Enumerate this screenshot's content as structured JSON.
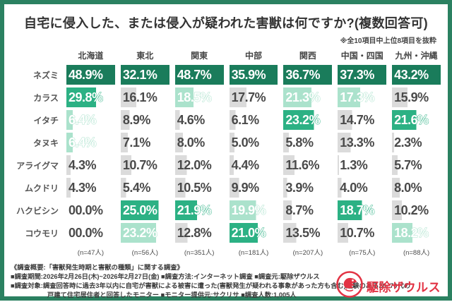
{
  "title": "自宅に侵入した、または侵入が疑われた害獣は何ですか?(複数回答可)",
  "note": "※全10項目中上位8項目を抜粋",
  "chart_data": {
    "type": "heatmap",
    "title": "自宅に侵入した、または侵入が疑われた害獣は何ですか?(複数回答可)",
    "subtitle": "※全10項目中上位8項目を抜粋",
    "unit": "%",
    "columns": [
      "北海道",
      "東北",
      "関東",
      "中部",
      "関西",
      "中国・四国",
      "九州・沖縄"
    ],
    "column_max": [
      48.9,
      32.1,
      48.7,
      35.9,
      36.7,
      37.3,
      43.2
    ],
    "sample_sizes": [
      "(n=47人)",
      "(n=56人)",
      "(n=351人)",
      "(n=181人)",
      "(n=207人)",
      "(n=75人)",
      "(n=88人)"
    ],
    "rank_legend": "per-column rank: 1=dark green, 2=medium green, 3=light green, 0=gray",
    "rows": [
      {
        "label": "ネズミ",
        "display": [
          "48.9%",
          "32.1%",
          "48.7%",
          "35.9%",
          "36.7%",
          "37.3%",
          "43.2%"
        ],
        "values": [
          48.9,
          32.1,
          48.7,
          35.9,
          36.7,
          37.3,
          43.2
        ],
        "ranks": [
          1,
          1,
          1,
          1,
          1,
          1,
          1
        ]
      },
      {
        "label": "カラス",
        "display": [
          "29.8%",
          "16.1%",
          "18.5%",
          "17.7%",
          "21.3%",
          "17.3%",
          "15.9%"
        ],
        "values": [
          29.8,
          16.1,
          18.5,
          17.7,
          21.3,
          17.3,
          15.9
        ],
        "ranks": [
          2,
          0,
          3,
          0,
          3,
          3,
          0
        ]
      },
      {
        "label": "イタチ",
        "display": [
          "6.4%",
          "8.9%",
          "4.6%",
          "6.1%",
          "23.2%",
          "14.7%",
          "21.6%"
        ],
        "values": [
          6.4,
          8.9,
          4.6,
          6.1,
          23.2,
          14.7,
          21.6
        ],
        "ranks": [
          3,
          0,
          0,
          0,
          2,
          0,
          2
        ]
      },
      {
        "label": "タヌキ",
        "display": [
          "6.4%",
          "7.1%",
          "8.0%",
          "5.0%",
          "5.8%",
          "13.3%",
          "2.3%"
        ],
        "values": [
          6.4,
          7.1,
          8.0,
          5.0,
          5.8,
          13.3,
          2.3
        ],
        "ranks": [
          3,
          0,
          0,
          0,
          0,
          0,
          0
        ]
      },
      {
        "label": "アライグマ",
        "display": [
          "4.3%",
          "10.7%",
          "12.0%",
          "4.4%",
          "11.6%",
          "1.3%",
          "5.7%"
        ],
        "values": [
          4.3,
          10.7,
          12.0,
          4.4,
          11.6,
          1.3,
          5.7
        ],
        "ranks": [
          0,
          0,
          0,
          0,
          0,
          0,
          0
        ]
      },
      {
        "label": "ムクドリ",
        "display": [
          "4.3%",
          "5.4%",
          "10.5%",
          "9.9%",
          "3.9%",
          "4.0%",
          "8.0%"
        ],
        "values": [
          4.3,
          5.4,
          10.5,
          9.9,
          3.9,
          4.0,
          8.0
        ],
        "ranks": [
          0,
          0,
          0,
          0,
          0,
          0,
          0
        ]
      },
      {
        "label": "ハクビシン",
        "display": [
          "00.0%",
          "25.0%",
          "21.9%",
          "19.9%",
          "8.7%",
          "18.7%",
          "10.2%"
        ],
        "values": [
          0.0,
          25.0,
          21.9,
          19.9,
          8.7,
          18.7,
          10.2
        ],
        "ranks": [
          0,
          2,
          2,
          3,
          0,
          2,
          0
        ]
      },
      {
        "label": "コウモリ",
        "display": [
          "00.0%",
          "23.2%",
          "12.8%",
          "21.0%",
          "13.5%",
          "10.7%",
          "18.2%"
        ],
        "values": [
          0.0,
          23.2,
          12.8,
          21.0,
          13.5,
          10.7,
          18.2
        ],
        "ranks": [
          0,
          3,
          0,
          2,
          0,
          0,
          3
        ]
      }
    ]
  },
  "footer": {
    "overview": "《調査概要:「害獣発生時期と害獣の種類」に関する調査》",
    "line2": "■調査期間:2026年2月26日(木)~2026年2月27日(金)  ■調査方法:インターネット調査  ■調査元:駆除ザウルス",
    "line3": "■調査対象:調査回答時に過去3年以内に自宅が害獣による被害に遭った(害獣発生が疑われる事象があった方も含む)経験のある20~70代の",
    "line4": "戸建て住宅居住者と回答したモニター  ■モニター提供元:サクリサ  ■調査人数:1,005人"
  },
  "logo": {
    "text": "駆除ザウルス"
  },
  "colors": {
    "frame": "#2B8161",
    "rank1": "#1A7C5B",
    "rank2": "#2CB184",
    "rank3": "#ABE2CC",
    "bar_default": "#DBDBDB",
    "text_dark": "#4A4A4A",
    "logo_red": "#E23344"
  }
}
